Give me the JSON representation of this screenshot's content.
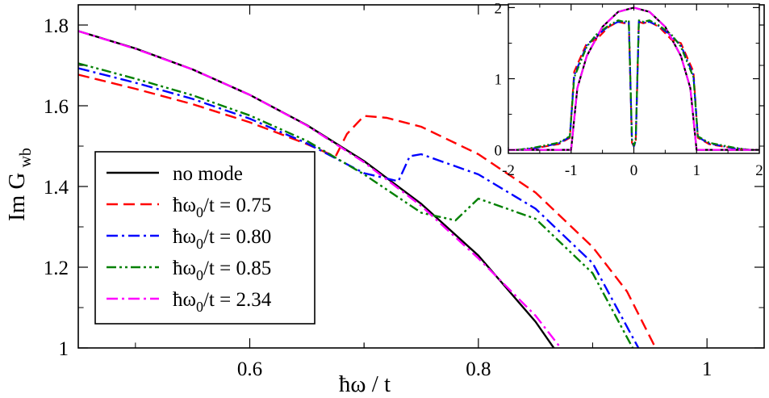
{
  "chart_data": [
    {
      "type": "line",
      "panel": "main",
      "xlabel": "ħω / t",
      "ylabel": "Im G",
      "ylabel_subscript": "wb",
      "xlim": [
        0.45,
        1.05
      ],
      "ylim": [
        1.0,
        1.85
      ],
      "x_ticks": [
        0.6,
        0.8,
        1.0
      ],
      "x_tick_labels": [
        "0.6",
        "0.8",
        "1"
      ],
      "y_ticks": [
        1.0,
        1.2,
        1.4,
        1.6,
        1.8
      ],
      "y_tick_labels": [
        "1",
        "1.2",
        "1.4",
        "1.6",
        "1.8"
      ],
      "legend_position": "bottom-left",
      "series": [
        {
          "name": "no mode",
          "color": "#000000",
          "dash": "solid",
          "x": [
            0.45,
            0.5,
            0.55,
            0.6,
            0.65,
            0.7,
            0.75,
            0.8,
            0.85,
            0.866
          ],
          "y": [
            1.785,
            1.742,
            1.69,
            1.627,
            1.552,
            1.463,
            1.357,
            1.229,
            1.065,
            1.0
          ]
        },
        {
          "name": "ħω0/t = 0.75",
          "color": "#ff0000",
          "dash": "dashed",
          "x": [
            0.45,
            0.5,
            0.55,
            0.6,
            0.65,
            0.675,
            0.685,
            0.7,
            0.72,
            0.75,
            0.8,
            0.85,
            0.9,
            0.93,
            0.955
          ],
          "y": [
            1.677,
            1.642,
            1.604,
            1.559,
            1.505,
            1.474,
            1.53,
            1.575,
            1.57,
            1.548,
            1.48,
            1.385,
            1.25,
            1.14,
            1.0
          ]
        },
        {
          "name": "ħω0/t = 0.80",
          "color": "#0000ff",
          "dash": "dashdot",
          "x": [
            0.45,
            0.5,
            0.55,
            0.6,
            0.65,
            0.7,
            0.73,
            0.74,
            0.75,
            0.8,
            0.85,
            0.9,
            0.94
          ],
          "y": [
            1.693,
            1.657,
            1.617,
            1.568,
            1.507,
            1.433,
            1.413,
            1.475,
            1.48,
            1.43,
            1.345,
            1.21,
            1.0
          ]
        },
        {
          "name": "ħω0/t = 0.85",
          "color": "#008000",
          "dash": "dashdotdot",
          "x": [
            0.45,
            0.5,
            0.55,
            0.6,
            0.65,
            0.7,
            0.75,
            0.78,
            0.8,
            0.85,
            0.9,
            0.935
          ],
          "y": [
            1.705,
            1.667,
            1.626,
            1.576,
            1.513,
            1.43,
            1.335,
            1.316,
            1.37,
            1.32,
            1.185,
            1.0
          ]
        },
        {
          "name": "ħω0/t = 2.34",
          "color": "#ff00ff",
          "dash": "dashdot",
          "x": [
            0.45,
            0.5,
            0.55,
            0.6,
            0.65,
            0.7,
            0.75,
            0.8,
            0.85,
            0.872
          ],
          "y": [
            1.785,
            1.741,
            1.69,
            1.627,
            1.551,
            1.46,
            1.352,
            1.222,
            1.08,
            1.0
          ]
        }
      ]
    },
    {
      "type": "line",
      "panel": "inset",
      "xlim": [
        -2,
        2
      ],
      "ylim": [
        -0.05,
        2.05
      ],
      "x_ticks": [
        -2,
        -1,
        0,
        1,
        2
      ],
      "x_tick_labels": [
        "-2",
        "-1",
        "0",
        "1",
        "2"
      ],
      "y_ticks": [
        0,
        1,
        2
      ],
      "y_tick_labels": [
        "0",
        "1",
        "2"
      ],
      "series": [
        {
          "name": "no mode",
          "color": "#000000",
          "dash": "solid",
          "x": [
            -2,
            -1,
            -1,
            -0.9,
            -0.75,
            -0.5,
            -0.25,
            0,
            0.25,
            0.5,
            0.75,
            0.9,
            1,
            1,
            2
          ],
          "y": [
            0,
            0,
            0,
            0.87,
            1.32,
            1.73,
            1.94,
            2.0,
            1.94,
            1.73,
            1.32,
            0.87,
            0,
            0,
            0
          ]
        },
        {
          "name": "ħω0/t = 0.75",
          "color": "#ff0000",
          "dash": "dashed",
          "x": [
            -1.85,
            -1.6,
            -1.2,
            -1.02,
            -0.95,
            -0.75,
            -0.6,
            -0.4,
            -0.25,
            -0.15,
            -0.08,
            -0.03,
            0,
            0.03,
            0.08,
            0.15,
            0.25,
            0.4,
            0.6,
            0.75,
            0.95,
            1.02,
            1.2,
            1.6,
            1.85
          ],
          "y": [
            0,
            0.02,
            0.08,
            0.17,
            1.1,
            1.5,
            1.55,
            1.73,
            1.8,
            1.78,
            1.8,
            0.1,
            0.05,
            0.1,
            1.8,
            1.78,
            1.8,
            1.73,
            1.55,
            1.5,
            1.1,
            0.17,
            0.08,
            0.02,
            0
          ]
        },
        {
          "name": "ħω0/t = 0.80",
          "color": "#0000ff",
          "dash": "dashdot",
          "x": [
            -1.85,
            -1.6,
            -1.2,
            -1.02,
            -0.95,
            -0.75,
            -0.6,
            -0.4,
            -0.25,
            -0.15,
            -0.08,
            -0.03,
            0,
            0.03,
            0.08,
            0.15,
            0.25,
            0.4,
            0.6,
            0.75,
            0.95,
            1.02,
            1.2,
            1.6,
            1.85
          ],
          "y": [
            0,
            0.02,
            0.09,
            0.18,
            1.05,
            1.47,
            1.6,
            1.74,
            1.8,
            1.79,
            1.8,
            0.12,
            0.05,
            0.12,
            1.8,
            1.79,
            1.8,
            1.74,
            1.6,
            1.47,
            1.05,
            0.18,
            0.09,
            0.02,
            0
          ]
        },
        {
          "name": "ħω0/t = 0.85",
          "color": "#008000",
          "dash": "dashdotdot",
          "x": [
            -1.85,
            -1.6,
            -1.2,
            -1.02,
            -0.95,
            -0.75,
            -0.6,
            -0.4,
            -0.25,
            -0.15,
            -0.08,
            -0.03,
            0,
            0.03,
            0.08,
            0.15,
            0.25,
            0.4,
            0.6,
            0.75,
            0.95,
            1.02,
            1.2,
            1.6,
            1.85
          ],
          "y": [
            0,
            0.03,
            0.1,
            0.19,
            1.02,
            1.45,
            1.62,
            1.75,
            1.82,
            1.8,
            1.82,
            0.14,
            0.06,
            0.14,
            1.82,
            1.8,
            1.82,
            1.75,
            1.62,
            1.45,
            1.02,
            0.19,
            0.1,
            0.03,
            0
          ]
        },
        {
          "name": "ħω0/t = 2.34",
          "color": "#ff00ff",
          "dash": "dashdot",
          "x": [
            -2,
            -1,
            -1,
            -0.9,
            -0.75,
            -0.5,
            -0.25,
            0,
            0.25,
            0.5,
            0.75,
            0.9,
            1,
            1,
            2
          ],
          "y": [
            0,
            0,
            0,
            0.87,
            1.32,
            1.73,
            1.94,
            2.0,
            1.94,
            1.73,
            1.32,
            0.87,
            0,
            0,
            0
          ]
        }
      ]
    }
  ],
  "legend": {
    "entries": [
      {
        "prefix": "",
        "sub": "",
        "suffix": "no mode"
      },
      {
        "prefix": "ħω",
        "sub": "0",
        "suffix": "/t = 0.75"
      },
      {
        "prefix": "ħω",
        "sub": "0",
        "suffix": "/t = 0.80"
      },
      {
        "prefix": "ħω",
        "sub": "0",
        "suffix": "/t = 0.85"
      },
      {
        "prefix": "ħω",
        "sub": "0",
        "suffix": "/t = 2.34"
      }
    ]
  }
}
